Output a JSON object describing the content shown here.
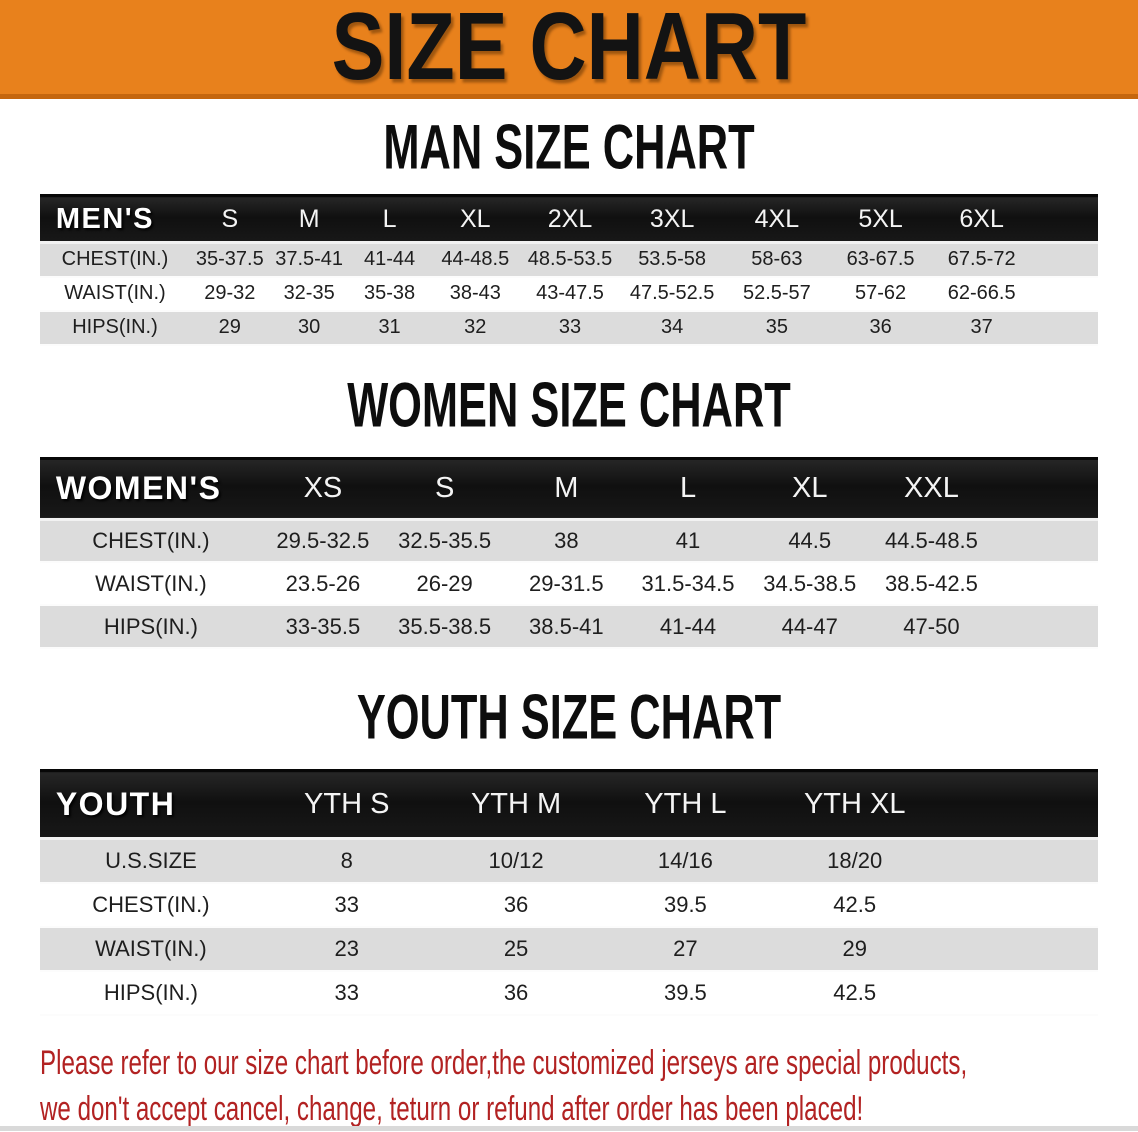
{
  "page_title": "SIZE CHART",
  "colors": {
    "banner_orange": "#e8811c",
    "banner_edge": "#c5660d",
    "row_gray": "#dcdcdc",
    "disclaimer_red": "#b22222",
    "band_black": "#141414"
  },
  "sections": [
    {
      "id": "men",
      "title": "MAN SIZE CHART",
      "header_label": "MEN'S",
      "sizes": [
        "S",
        "M",
        "L",
        "XL",
        "2XL",
        "3XL",
        "4XL",
        "5XL",
        "6XL"
      ],
      "rows": [
        {
          "label": "CHEST(IN.)",
          "values": [
            "35-37.5",
            "37.5-41",
            "41-44",
            "44-48.5",
            "48.5-53.5",
            "53.5-58",
            "58-63",
            "63-67.5",
            "67.5-72"
          ]
        },
        {
          "label": "WAIST(IN.)",
          "values": [
            "29-32",
            "32-35",
            "35-38",
            "38-43",
            "43-47.5",
            "47.5-52.5",
            "52.5-57",
            "57-62",
            "62-66.5"
          ]
        },
        {
          "label": "HIPS(IN.)",
          "values": [
            "29",
            "30",
            "31",
            "32",
            "33",
            "34",
            "35",
            "36",
            "37"
          ]
        }
      ]
    },
    {
      "id": "women",
      "title": "WOMEN SIZE CHART",
      "header_label": "WOMEN'S",
      "sizes": [
        "XS",
        "S",
        "M",
        "L",
        "XL",
        "XXL"
      ],
      "rows": [
        {
          "label": "CHEST(IN.)",
          "values": [
            "29.5-32.5",
            "32.5-35.5",
            "38",
            "41",
            "44.5",
            "44.5-48.5"
          ]
        },
        {
          "label": "WAIST(IN.)",
          "values": [
            "23.5-26",
            "26-29",
            "29-31.5",
            "31.5-34.5",
            "34.5-38.5",
            "38.5-42.5"
          ]
        },
        {
          "label": "HIPS(IN.)",
          "values": [
            "33-35.5",
            "35.5-38.5",
            "38.5-41",
            "41-44",
            "44-47",
            "47-50"
          ]
        }
      ]
    },
    {
      "id": "youth",
      "title": "YOUTH SIZE CHART",
      "header_label": "YOUTH",
      "sizes": [
        "YTH S",
        "YTH M",
        "YTH L",
        "YTH XL"
      ],
      "rows": [
        {
          "label": "U.S.SIZE",
          "values": [
            "8",
            "10/12",
            "14/16",
            "18/20"
          ]
        },
        {
          "label": "CHEST(IN.)",
          "values": [
            "33",
            "36",
            "39.5",
            "42.5"
          ]
        },
        {
          "label": "WAIST(IN.)",
          "values": [
            "23",
            "25",
            "27",
            "29"
          ]
        },
        {
          "label": "HIPS(IN.)",
          "values": [
            "33",
            "36",
            "39.5",
            "42.5"
          ]
        }
      ]
    }
  ],
  "disclaimer": {
    "line1": "Please refer to our size chart before order,the customized jerseys are special products,",
    "line2": "we don't accept cancel, change, teturn or refund after order has been placed!"
  }
}
